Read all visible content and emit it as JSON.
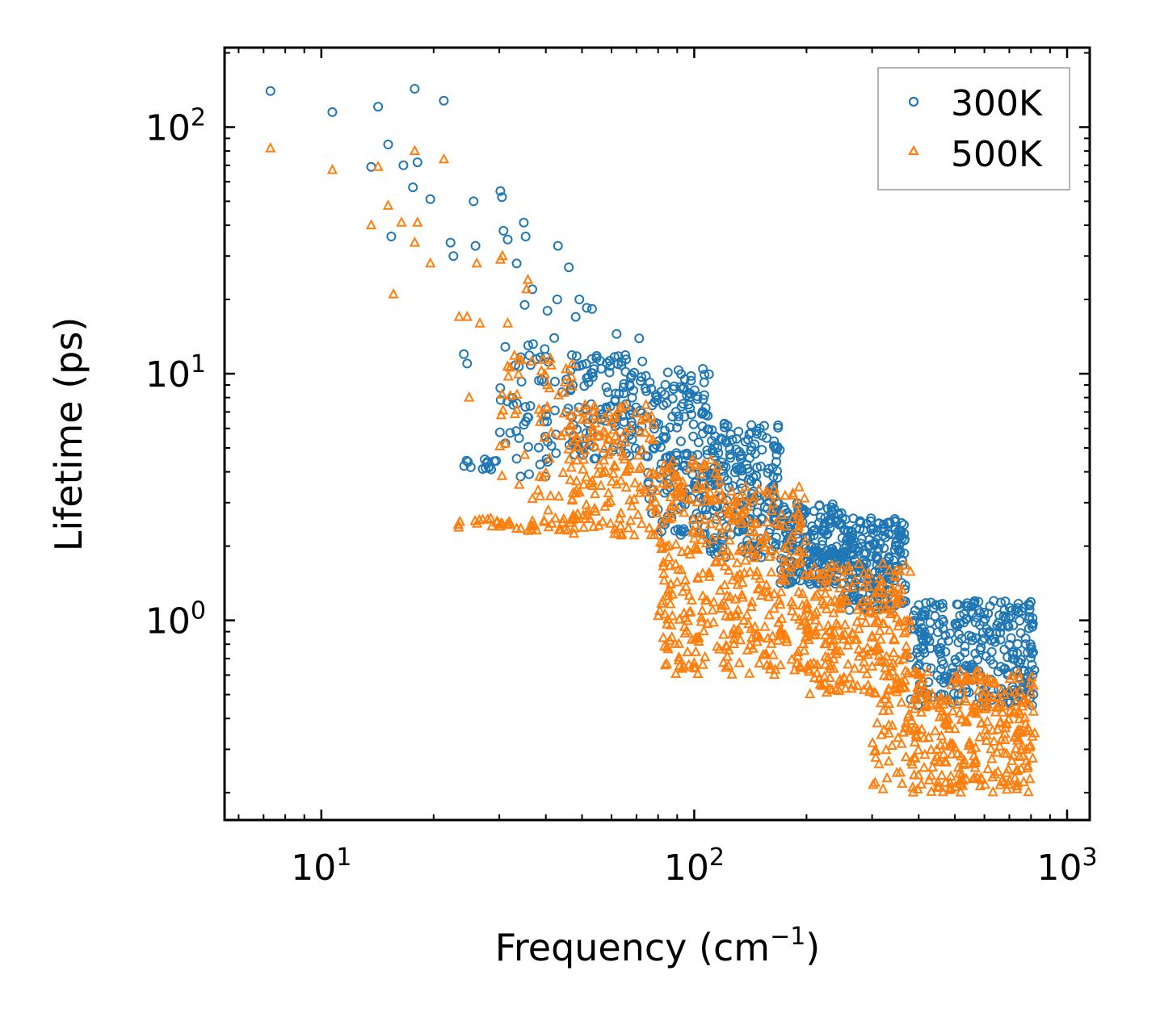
{
  "chart_data": {
    "type": "scatter",
    "title": "",
    "xlabel": "Frequency (cm",
    "xlabel_superscript": "−1",
    "xlabel_suffix": ")",
    "ylabel": "Lifetime (ps)",
    "xscale": "log",
    "yscale": "log",
    "xlim": [
      5.5,
      1150
    ],
    "ylim": [
      0.155,
      210
    ],
    "x_ticks": [
      {
        "base": "10",
        "exp": "1",
        "value": 10
      },
      {
        "base": "10",
        "exp": "2",
        "value": 100
      },
      {
        "base": "10",
        "exp": "3",
        "value": 1000
      }
    ],
    "y_ticks": [
      {
        "base": "10",
        "exp": "0",
        "value": 1
      },
      {
        "base": "10",
        "exp": "1",
        "value": 10
      },
      {
        "base": "10",
        "exp": "2",
        "value": 100
      }
    ],
    "legend_position": "top-right",
    "series": [
      {
        "name": "300K",
        "marker": "circle",
        "color": "#1f77b4",
        "points": [
          [
            7.3,
            140
          ],
          [
            10.7,
            115
          ],
          [
            14.2,
            121
          ],
          [
            17.8,
            143
          ],
          [
            21.3,
            128
          ],
          [
            15.1,
            85
          ],
          [
            13.6,
            69
          ],
          [
            16.6,
            70
          ],
          [
            18.1,
            72
          ],
          [
            17.6,
            57
          ],
          [
            19.6,
            51
          ],
          [
            15.4,
            36
          ],
          [
            22.2,
            34
          ],
          [
            25.6,
            50
          ],
          [
            30.2,
            55
          ],
          [
            30.5,
            52
          ],
          [
            25.9,
            33
          ],
          [
            22.6,
            30
          ],
          [
            30.8,
            38
          ],
          [
            34.9,
            41
          ],
          [
            31.6,
            35
          ],
          [
            35.3,
            36
          ],
          [
            33.4,
            28
          ],
          [
            43.1,
            33
          ],
          [
            46.1,
            27
          ],
          [
            40.4,
            18
          ],
          [
            42.9,
            20
          ],
          [
            49.2,
            20
          ],
          [
            51.5,
            18.5
          ],
          [
            48.1,
            17
          ],
          [
            36.8,
            22
          ],
          [
            35.1,
            19
          ],
          [
            24.1,
            12
          ],
          [
            24.6,
            11
          ],
          [
            53.2,
            18.3
          ],
          [
            61.9,
            14.5
          ],
          [
            71.2,
            13.9
          ]
        ],
        "bands": [
          {
            "x": [
              23.5,
              30
            ],
            "y": [
              4.0,
              4.5
            ],
            "n": 14
          },
          {
            "x": [
              30,
              46
            ],
            "y": [
              3.8,
              14
            ],
            "n": 60
          },
          {
            "x": [
              46,
              75
            ],
            "y": [
              4.5,
              12
            ],
            "n": 130
          },
          {
            "x": [
              75,
              110
            ],
            "y": [
              2.2,
              10.5
            ],
            "n": 170
          },
          {
            "x": [
              110,
              170
            ],
            "y": [
              1.8,
              6.5
            ],
            "n": 210
          },
          {
            "x": [
              170,
              250
            ],
            "y": [
              1.4,
              3.0
            ],
            "n": 200
          },
          {
            "x": [
              250,
              370
            ],
            "y": [
              1.1,
              2.6
            ],
            "n": 220
          },
          {
            "x": [
              380,
              820
            ],
            "y": [
              0.45,
              1.2
            ],
            "n": 300
          }
        ]
      },
      {
        "name": "500K",
        "marker": "triangle",
        "color": "#ff7f0e",
        "points": [
          [
            7.3,
            82
          ],
          [
            10.7,
            67
          ],
          [
            14.2,
            69
          ],
          [
            17.8,
            80
          ],
          [
            21.3,
            74
          ],
          [
            13.6,
            40
          ],
          [
            15.1,
            48
          ],
          [
            16.4,
            41
          ],
          [
            17.8,
            34
          ],
          [
            18.1,
            41
          ],
          [
            19.6,
            28
          ],
          [
            15.6,
            21
          ],
          [
            26.1,
            28
          ],
          [
            30.2,
            29
          ],
          [
            30.6,
            30
          ],
          [
            24.6,
            17
          ],
          [
            23.4,
            17
          ],
          [
            26.6,
            16
          ],
          [
            31.6,
            16
          ],
          [
            35.5,
            22
          ],
          [
            35.8,
            24
          ],
          [
            24.9,
            8
          ],
          [
            30.7,
            7.1
          ]
        ],
        "bands": [
          {
            "x": [
              23,
              46
            ],
            "y": [
              2.3,
              2.6
            ],
            "n": 40
          },
          {
            "x": [
              30,
              48
            ],
            "y": [
              2.6,
              12
            ],
            "n": 60
          },
          {
            "x": [
              46,
              80
            ],
            "y": [
              2.2,
              7.5
            ],
            "n": 160
          },
          {
            "x": [
              80,
              120
            ],
            "y": [
              0.6,
              4.5
            ],
            "n": 190
          },
          {
            "x": [
              120,
              200
            ],
            "y": [
              0.6,
              3.5
            ],
            "n": 220
          },
          {
            "x": [
              200,
              380
            ],
            "y": [
              0.5,
              1.7
            ],
            "n": 250
          },
          {
            "x": [
              300,
              380
            ],
            "y": [
              0.2,
              0.55
            ],
            "n": 40
          },
          {
            "x": [
              380,
              820
            ],
            "y": [
              0.2,
              0.62
            ],
            "n": 300
          }
        ]
      }
    ]
  }
}
